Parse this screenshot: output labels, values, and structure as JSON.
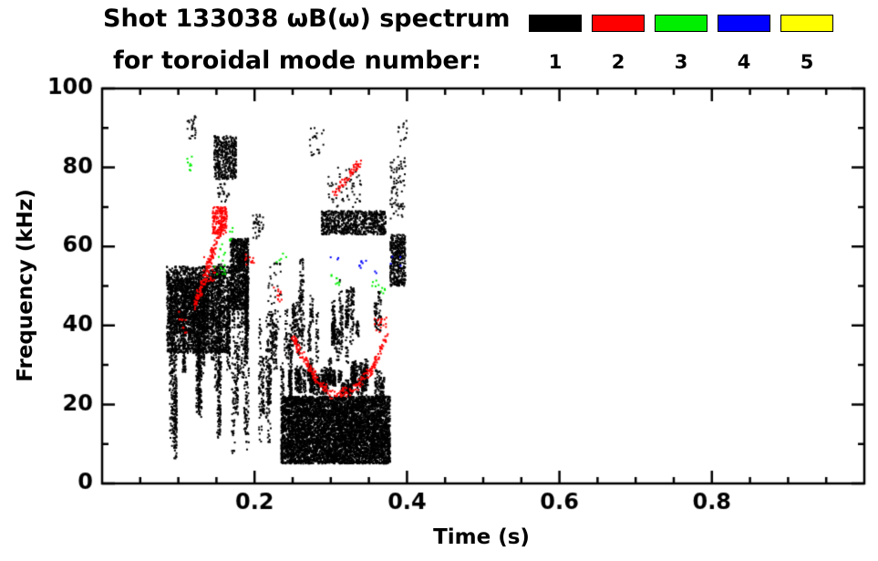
{
  "title": {
    "line1": "Shot 133038 ωB(ω) spectrum",
    "line2": "for toroidal mode number:"
  },
  "legend": {
    "entries": [
      {
        "label": "1",
        "color": "#000000"
      },
      {
        "label": "2",
        "color": "#ff0000"
      },
      {
        "label": "3",
        "color": "#00ee00"
      },
      {
        "label": "4",
        "color": "#0000ff"
      },
      {
        "label": "5",
        "color": "#ffff00"
      }
    ]
  },
  "chart_data": {
    "type": "scatter",
    "title": "Shot 133038 ωB(ω) spectrum for toroidal mode number: 1 2 3 4 5",
    "xlabel": "Time (s)",
    "ylabel": "Frequency (kHz)",
    "xlim": [
      0,
      1.0
    ],
    "ylim": [
      0,
      100
    ],
    "xticks": [
      0.2,
      0.4,
      0.6,
      0.8
    ],
    "xtick_labels": [
      "0.2",
      "0.4",
      "0.6",
      "0.8"
    ],
    "x_minor_step": 0.05,
    "yticks": [
      0,
      20,
      40,
      60,
      80,
      100
    ],
    "ytick_labels": [
      "0",
      "20",
      "40",
      "60",
      "80",
      "100"
    ],
    "y_minor_step": 10,
    "grid": false,
    "legend_position": "top-right",
    "modes": [
      {
        "name": "1",
        "color": "#000000",
        "clusters": [
          {
            "shape": "blob",
            "t": [
              0.085,
              0.168
            ],
            "f": [
              33,
              55
            ],
            "n": 2400,
            "s": 2
          },
          {
            "shape": "streaks",
            "t": [
              0.088,
              0.205
            ],
            "f": [
              6,
              62
            ],
            "k": 26,
            "n": 2000,
            "s": 2
          },
          {
            "shape": "blob",
            "t": [
              0.095,
              0.14
            ],
            "f": [
              38,
              52
            ],
            "n": 700,
            "s": 2
          },
          {
            "shape": "dots",
            "t": [
              0.112,
              0.123
            ],
            "f": [
              87,
              93
            ],
            "n": 26,
            "s": 2
          },
          {
            "shape": "blob",
            "t": [
              0.147,
              0.176
            ],
            "f": [
              77,
              88
            ],
            "n": 420,
            "s": 2
          },
          {
            "shape": "dots",
            "t": [
              0.152,
              0.168
            ],
            "f": [
              71,
              76
            ],
            "n": 24,
            "s": 2
          },
          {
            "shape": "blob",
            "t": [
              0.168,
              0.192
            ],
            "f": [
              44,
              62
            ],
            "n": 900,
            "s": 2
          },
          {
            "shape": "streaks",
            "t": [
              0.19,
              0.228
            ],
            "f": [
              8,
              55
            ],
            "k": 7,
            "n": 380,
            "s": 2
          },
          {
            "shape": "dots",
            "t": [
              0.198,
              0.212
            ],
            "f": [
              62,
              68
            ],
            "n": 36,
            "s": 2
          },
          {
            "shape": "blob",
            "t": [
              0.235,
              0.378
            ],
            "f": [
              5,
              22
            ],
            "n": 6500,
            "s": 2
          },
          {
            "shape": "streaks",
            "t": [
              0.235,
              0.377
            ],
            "f": [
              21,
              32
            ],
            "k": 42,
            "n": 1400,
            "s": 2
          },
          {
            "shape": "streaks",
            "t": [
              0.24,
              0.372
            ],
            "f": [
              30,
              52
            ],
            "k": 24,
            "n": 800,
            "s": 2
          },
          {
            "shape": "blob",
            "t": [
              0.288,
              0.372
            ],
            "f": [
              63,
              69
            ],
            "n": 750,
            "s": 2
          },
          {
            "shape": "dots",
            "t": [
              0.296,
              0.34
            ],
            "f": [
              70,
              80
            ],
            "n": 55,
            "s": 2
          },
          {
            "shape": "dots",
            "t": [
              0.272,
              0.292
            ],
            "f": [
              83,
              90
            ],
            "n": 22,
            "s": 2
          },
          {
            "shape": "blob",
            "t": [
              0.378,
              0.398
            ],
            "f": [
              50,
              63
            ],
            "n": 420,
            "s": 2
          },
          {
            "shape": "dots",
            "t": [
              0.378,
              0.398
            ],
            "f": [
              67,
              83
            ],
            "n": 80,
            "s": 2
          },
          {
            "shape": "dots",
            "t": [
              0.388,
              0.4
            ],
            "f": [
              85,
              92
            ],
            "n": 14,
            "s": 2
          },
          {
            "shape": "dots",
            "t": [
              0.218,
              0.235
            ],
            "f": [
              38,
              56
            ],
            "n": 40,
            "s": 2
          },
          {
            "shape": "streaks",
            "t": [
              0.252,
              0.27
            ],
            "f": [
              33,
              60
            ],
            "k": 3,
            "n": 110,
            "s": 2
          }
        ]
      },
      {
        "name": "2",
        "color": "#ff0000",
        "clusters": [
          {
            "shape": "line",
            "pts": [
              [
                0.122,
                45
              ],
              [
                0.143,
                57
              ],
              [
                0.158,
                66
              ]
            ],
            "n": 150,
            "jt": 0.002,
            "jf": 1.4,
            "s": 2
          },
          {
            "shape": "blob",
            "t": [
              0.145,
              0.164
            ],
            "f": [
              63,
              70
            ],
            "n": 150,
            "s": 2
          },
          {
            "shape": "dots",
            "t": [
              0.132,
              0.15
            ],
            "f": [
              51,
              58
            ],
            "n": 26,
            "s": 2
          },
          {
            "shape": "line",
            "pts": [
              [
                0.25,
                37
              ],
              [
                0.282,
                26
              ],
              [
                0.302,
                22.5
              ],
              [
                0.328,
                23.5
              ],
              [
                0.355,
                29
              ],
              [
                0.373,
                37
              ]
            ],
            "n": 240,
            "jt": 0.002,
            "jf": 1.2,
            "s": 2
          },
          {
            "shape": "line",
            "pts": [
              [
                0.303,
                73
              ],
              [
                0.324,
                78
              ],
              [
                0.339,
                81.5
              ]
            ],
            "n": 60,
            "jt": 0.0015,
            "jf": 1.0,
            "s": 2
          },
          {
            "shape": "dots",
            "t": [
              0.188,
              0.2
            ],
            "f": [
              54,
              58
            ],
            "n": 12,
            "s": 2
          },
          {
            "shape": "dots",
            "t": [
              0.224,
              0.236
            ],
            "f": [
              46,
              50
            ],
            "n": 12,
            "s": 2
          },
          {
            "shape": "dots",
            "t": [
              0.357,
              0.375
            ],
            "f": [
              38,
              42
            ],
            "n": 18,
            "s": 2
          },
          {
            "shape": "dots",
            "t": [
              0.1,
              0.112
            ],
            "f": [
              38,
              44
            ],
            "n": 10,
            "s": 2
          }
        ]
      },
      {
        "name": "3",
        "color": "#00ee00",
        "clusters": [
          {
            "shape": "dots",
            "t": [
              0.111,
              0.118
            ],
            "f": [
              79,
              83
            ],
            "n": 8,
            "s": 2
          },
          {
            "shape": "dots",
            "t": [
              0.146,
              0.163
            ],
            "f": [
              53,
              61
            ],
            "n": 16,
            "s": 2
          },
          {
            "shape": "dots",
            "t": [
              0.164,
              0.172
            ],
            "f": [
              61,
              65
            ],
            "n": 6,
            "s": 2
          },
          {
            "shape": "dots",
            "t": [
              0.298,
              0.316
            ],
            "f": [
              50,
              53
            ],
            "n": 8,
            "s": 2
          },
          {
            "shape": "dots",
            "t": [
              0.354,
              0.374
            ],
            "f": [
              48,
              52
            ],
            "n": 10,
            "s": 2
          },
          {
            "shape": "dots",
            "t": [
              0.228,
              0.242
            ],
            "f": [
              56,
              60
            ],
            "n": 5,
            "s": 2
          }
        ]
      },
      {
        "name": "4",
        "color": "#0000ff",
        "clusters": [
          {
            "shape": "dots",
            "t": [
              0.333,
              0.362
            ],
            "f": [
              53,
              57
            ],
            "n": 9,
            "s": 2
          },
          {
            "shape": "dots",
            "t": [
              0.378,
              0.392
            ],
            "f": [
              55,
              58
            ],
            "n": 4,
            "s": 2
          },
          {
            "shape": "dots",
            "t": [
              0.298,
              0.31
            ],
            "f": [
              56,
              58
            ],
            "n": 3,
            "s": 2
          }
        ]
      },
      {
        "name": "5",
        "color": "#ffff00",
        "clusters": []
      }
    ]
  }
}
